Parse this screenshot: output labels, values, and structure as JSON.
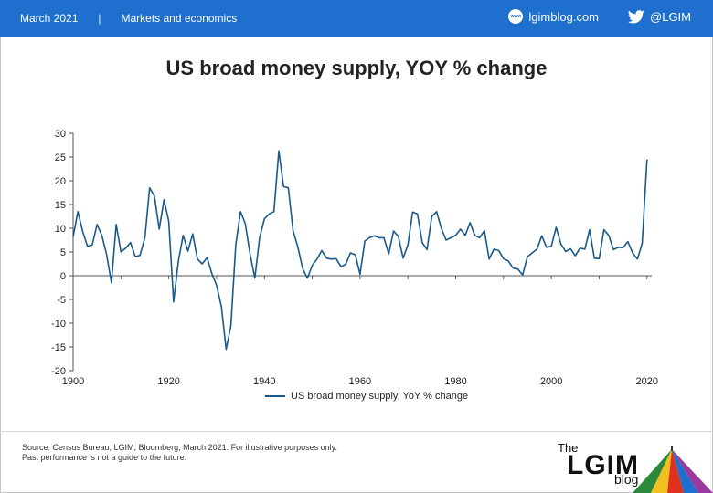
{
  "header": {
    "date": "March 2021",
    "separator": "|",
    "section": "Markets and economics",
    "site": "lgimblog.com",
    "twitter": "@LGIM",
    "accent_color": "#1f6fcf"
  },
  "title": "US broad money supply, YOY % change",
  "chart_data": {
    "type": "line",
    "title": "US broad money supply, YOY % change",
    "xlim": [
      1900,
      2021
    ],
    "ylim": [
      -20,
      30
    ],
    "yticks": [
      30,
      25,
      20,
      15,
      10,
      5,
      0,
      -5,
      -10,
      -15,
      -20
    ],
    "xticks": [
      1900,
      1920,
      1940,
      1960,
      1980,
      2000,
      2020
    ],
    "grid": false,
    "legend_position": "bottom-center",
    "series": [
      {
        "name": "US broad money supply, YoY % change",
        "color": "#1a5a8a",
        "x": [
          1900,
          1901,
          1902,
          1903,
          1904,
          1905,
          1906,
          1907,
          1908,
          1909,
          1910,
          1911,
          1912,
          1913,
          1914,
          1915,
          1916,
          1917,
          1918,
          1919,
          1920,
          1921,
          1922,
          1923,
          1924,
          1925,
          1926,
          1927,
          1928,
          1929,
          1930,
          1931,
          1932,
          1933,
          1934,
          1935,
          1936,
          1937,
          1938,
          1939,
          1940,
          1941,
          1942,
          1943,
          1944,
          1945,
          1946,
          1947,
          1948,
          1949,
          1950,
          1951,
          1952,
          1953,
          1954,
          1955,
          1956,
          1957,
          1958,
          1959,
          1960,
          1961,
          1962,
          1963,
          1964,
          1965,
          1966,
          1967,
          1968,
          1969,
          1970,
          1971,
          1972,
          1973,
          1974,
          1975,
          1976,
          1977,
          1978,
          1979,
          1980,
          1981,
          1982,
          1983,
          1984,
          1985,
          1986,
          1987,
          1988,
          1989,
          1990,
          1991,
          1992,
          1993,
          1994,
          1995,
          1996,
          1997,
          1998,
          1999,
          2000,
          2001,
          2002,
          2003,
          2004,
          2005,
          2006,
          2007,
          2008,
          2009,
          2010,
          2011,
          2012,
          2013,
          2014,
          2015,
          2016,
          2017,
          2018,
          2019,
          2020
        ],
        "values": [
          8.2,
          13.5,
          9.3,
          6.2,
          6.5,
          10.8,
          8.5,
          4.5,
          -1.5,
          10.8,
          5.0,
          5.8,
          7.0,
          4.0,
          4.3,
          8.0,
          18.5,
          16.8,
          9.8,
          16.0,
          11.5,
          -5.5,
          3.0,
          8.5,
          5.2,
          8.8,
          3.5,
          2.5,
          3.8,
          0.5,
          -2.0,
          -6.5,
          -15.5,
          -10.5,
          6.5,
          13.5,
          11.0,
          4.5,
          -0.5,
          8.0,
          12.0,
          13.0,
          13.5,
          26.3,
          18.8,
          18.5,
          9.5,
          6.0,
          1.5,
          -0.5,
          2.2,
          3.5,
          5.3,
          3.7,
          3.5,
          3.6,
          1.9,
          2.4,
          4.8,
          4.4,
          0.3,
          7.3,
          8.0,
          8.4,
          8.0,
          8.0,
          4.6,
          9.4,
          8.3,
          3.7,
          6.5,
          13.4,
          13.0,
          7.0,
          5.5,
          12.5,
          13.5,
          10.0,
          7.5,
          8.0,
          8.5,
          9.8,
          8.5,
          11.2,
          8.5,
          8.0,
          9.5,
          3.5,
          5.6,
          5.3,
          3.6,
          3.1,
          1.6,
          1.4,
          0.2,
          4.0,
          4.8,
          5.6,
          8.4,
          6.0,
          6.2,
          10.2,
          6.7,
          5.1,
          5.7,
          4.2,
          5.8,
          5.6,
          9.7,
          3.7,
          3.6,
          9.7,
          8.5,
          5.5,
          6.0,
          5.9,
          7.2,
          4.8,
          3.5,
          6.8,
          24.5
        ]
      }
    ]
  },
  "legend_label": "US broad money supply, YoY % change",
  "footer": {
    "source_line1": "Source: Census Bureau, LGIM, Bloomberg, March 2021. For illustrative purposes only.",
    "source_line2": "Past performance is not a guide to the future.",
    "brand_the": "The",
    "brand_lgim": "LGIM",
    "brand_blog": "blog"
  }
}
